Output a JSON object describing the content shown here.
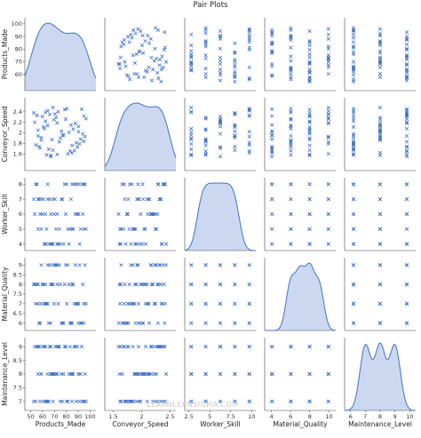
{
  "chart_data": {
    "type": "scatter",
    "title": "Pair Plots",
    "watermark": "LEARNLEANSIGMA.COM",
    "marker": "x",
    "color": "#4472c4",
    "diagonal": "kde",
    "variables": [
      {
        "name": "Products_Made",
        "range": [
          45,
          105
        ],
        "ticks": [
          50,
          60,
          70,
          80,
          90,
          100
        ]
      },
      {
        "name": "Conveyor_Speed",
        "range": [
          1.35,
          2.6
        ],
        "ticks": [
          1.5,
          2.0,
          2.5
        ],
        "tick_labels_y": [
          1.6,
          1.8,
          2.0,
          2.2,
          2.4
        ]
      },
      {
        "name": "Worker_Skill",
        "range": [
          3.8,
          8.2
        ],
        "ticks": [
          4,
          5,
          6,
          7,
          8
        ],
        "tick_labels_x": [
          2.5,
          5.0,
          7.5,
          10.0
        ],
        "xrange": [
          2.0,
          10.5
        ]
      },
      {
        "name": "Material_Quality",
        "range": [
          5.8,
          9.2
        ],
        "ticks": [
          6.0,
          6.5,
          7.0,
          7.5,
          8.0,
          8.5,
          9.0
        ],
        "tick_labels_x": [
          4,
          6,
          8,
          10
        ],
        "xrange": [
          3.3,
          10.7
        ]
      },
      {
        "name": "Maintenance_Level",
        "range": [
          6.8,
          9.2
        ],
        "ticks": [
          7.0,
          7.5,
          8.0,
          8.5,
          9.0
        ],
        "tick_labels_x": [
          6,
          7,
          8,
          9,
          10
        ],
        "xrange": [
          5.6,
          10.4
        ]
      }
    ],
    "rows": [
      [
        58,
        2.31,
        6,
        8,
        9
      ],
      [
        97,
        1.84,
        5,
        7,
        7
      ],
      [
        72,
        1.59,
        4,
        8,
        9
      ],
      [
        85,
        2.15,
        7,
        6,
        8
      ],
      [
        63,
        2.42,
        8,
        9,
        7
      ],
      [
        91,
        1.73,
        6,
        7,
        9
      ],
      [
        54,
        2.05,
        5,
        8,
        8
      ],
      [
        77,
        1.95,
        7,
        6,
        7
      ],
      [
        68,
        2.48,
        4,
        9,
        8
      ],
      [
        88,
        1.66,
        8,
        7,
        9
      ],
      [
        61,
        2.22,
        6,
        8,
        7
      ],
      [
        94,
        1.88,
        5,
        6,
        8
      ],
      [
        70,
        2.36,
        7,
        9,
        9
      ],
      [
        52,
        1.77,
        8,
        7,
        7
      ],
      [
        83,
        2.01,
        4,
        8,
        8
      ],
      [
        66,
        1.55,
        6,
        6,
        9
      ],
      [
        99,
        2.27,
        5,
        7,
        7
      ],
      [
        57,
        1.91,
        7,
        9,
        8
      ],
      [
        79,
        2.44,
        8,
        8,
        9
      ],
      [
        64,
        1.69,
        4,
        6,
        7
      ],
      [
        92,
        2.12,
        6,
        7,
        8
      ],
      [
        74,
        1.83,
        5,
        9,
        9
      ],
      [
        50,
        2.38,
        7,
        8,
        7
      ],
      [
        86,
        1.62,
        8,
        6,
        8
      ],
      [
        60,
        2.08,
        4,
        7,
        9
      ],
      [
        96,
        1.98,
        6,
        8,
        7
      ],
      [
        71,
        2.29,
        5,
        9,
        8
      ],
      [
        55,
        1.74,
        7,
        6,
        9
      ],
      [
        81,
        2.46,
        8,
        7,
        7
      ],
      [
        67,
        1.87,
        4,
        8,
        8
      ],
      [
        89,
        2.18,
        6,
        9,
        9
      ],
      [
        62,
        1.58,
        5,
        7,
        7
      ],
      [
        76,
        2.03,
        7,
        6,
        8
      ],
      [
        53,
        2.33,
        8,
        8,
        9
      ],
      [
        93,
        1.79,
        4,
        9,
        7
      ],
      [
        69,
        2.25,
        6,
        7,
        8
      ],
      [
        84,
        1.65,
        5,
        6,
        9
      ],
      [
        59,
        2.11,
        7,
        8,
        7
      ],
      [
        98,
        1.93,
        8,
        9,
        8
      ],
      [
        73,
        2.4,
        4,
        7,
        9
      ],
      [
        56,
        1.71,
        6,
        6,
        7
      ],
      [
        87,
        2.07,
        5,
        8,
        8
      ],
      [
        65,
        2.35,
        7,
        9,
        9
      ],
      [
        90,
        1.81,
        8,
        7,
        7
      ],
      [
        78,
        1.96,
        4,
        6,
        8
      ],
      [
        51,
        2.2,
        6,
        8,
        9
      ],
      [
        82,
        1.6,
        5,
        9,
        7
      ],
      [
        63,
        2.14,
        7,
        7,
        8
      ],
      [
        95,
        2.45,
        8,
        6,
        9
      ],
      [
        75,
        1.9,
        4,
        8,
        7
      ],
      [
        57,
        1.86,
        5,
        7,
        8
      ],
      [
        80,
        2.26,
        6,
        9,
        9
      ],
      [
        68,
        1.67,
        7,
        8,
        7
      ],
      [
        92,
        2.02,
        8,
        6,
        8
      ],
      [
        61,
        2.39,
        4,
        7,
        9
      ],
      [
        86,
        1.76,
        5,
        8,
        7
      ],
      [
        72,
        2.19,
        6,
        9,
        8
      ],
      [
        54,
        1.94,
        7,
        7,
        9
      ],
      [
        97,
        2.32,
        8,
        6,
        7
      ],
      [
        66,
        1.57,
        4,
        8,
        8
      ]
    ]
  }
}
